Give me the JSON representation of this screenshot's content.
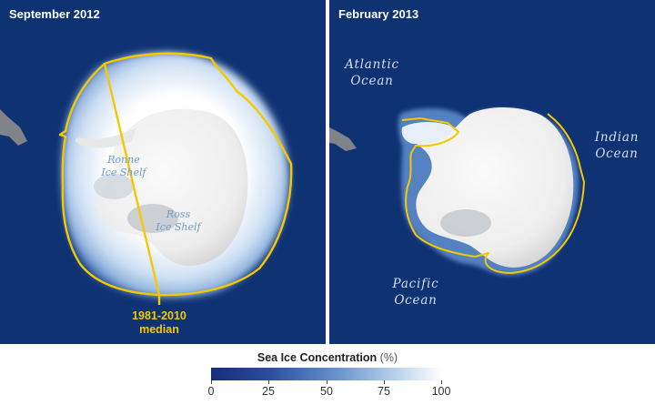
{
  "panels": [
    {
      "title": "September 2012",
      "labels": {
        "ronne": "Ronne\nIce Shelf",
        "ross": "Ross\nIce Shelf",
        "median": "1981-2010\nmedian"
      }
    },
    {
      "title": "February 2013",
      "labels": {
        "atlantic": "Atlantic\nOcean",
        "indian": "Indian\nOcean",
        "pacific": "Pacific\nOcean"
      }
    }
  ],
  "legend": {
    "title": "Sea Ice Concentration",
    "unit": "(%)",
    "ticks": [
      "0",
      "25",
      "50",
      "75",
      "100"
    ],
    "min": 0,
    "max": 100,
    "colors": [
      "#1a2c7a",
      "#2b4d9c",
      "#5d88c6",
      "#a8c6e6",
      "#ffffff"
    ]
  },
  "colors": {
    "ocean": "#0f3273",
    "median_line": "#f5c800",
    "sea_ice": "#dbe8f5",
    "land_ice": "#f3f3f3"
  }
}
